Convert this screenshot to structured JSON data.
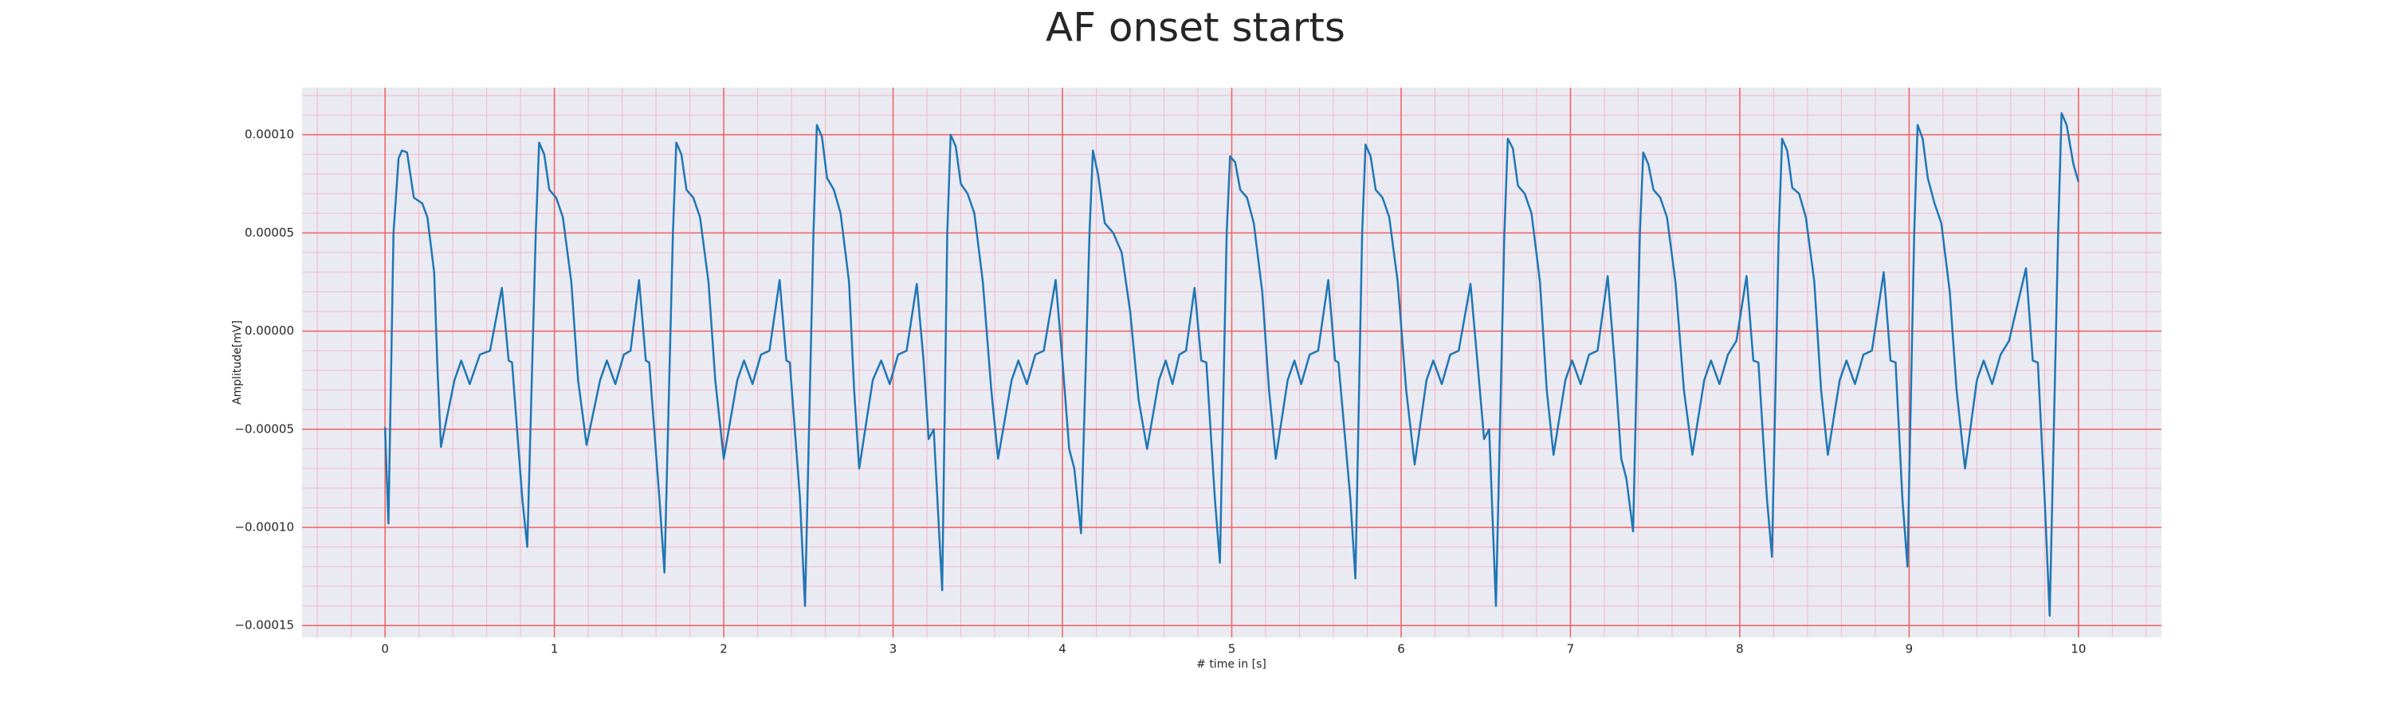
{
  "chart_data": {
    "type": "line",
    "title": "AF onset starts",
    "xlabel": "# time in [s]",
    "ylabel": "Amplitude[mV]",
    "xlim": [
      -0.49,
      10.49
    ],
    "ylim": [
      -0.000156,
      0.000124
    ],
    "xticks": [
      0,
      1,
      2,
      3,
      4,
      5,
      6,
      7,
      8,
      9,
      10
    ],
    "yticks": [
      {
        "value": -0.00015,
        "label": "−0.00015"
      },
      {
        "value": -0.0001,
        "label": "−0.00010"
      },
      {
        "value": -5e-05,
        "label": "−0.00005"
      },
      {
        "value": 0,
        "label": "0.00000"
      },
      {
        "value": 5e-05,
        "label": "0.00005"
      },
      {
        "value": 0.0001,
        "label": "0.00010"
      }
    ],
    "grid": true,
    "series": [
      {
        "color": "#1f77b4",
        "x": [
          0,
          0.02,
          0.05,
          0.08,
          0.1,
          0.13,
          0.17,
          0.22,
          0.25,
          0.29,
          0.31,
          0.33,
          0.41,
          0.45,
          0.5,
          0.56,
          0.62,
          0.69,
          0.73,
          0.75,
          0.81,
          0.84,
          0.89,
          0.91,
          0.94,
          0.97,
          1.01,
          1.05,
          1.1,
          1.14,
          1.19,
          1.27,
          1.31,
          1.36,
          1.41,
          1.45,
          1.5,
          1.54,
          1.56,
          1.62,
          1.65,
          1.7,
          1.72,
          1.75,
          1.78,
          1.82,
          1.86,
          1.91,
          1.95,
          2.0,
          2.08,
          2.12,
          2.17,
          2.22,
          2.27,
          2.33,
          2.37,
          2.39,
          2.45,
          2.48,
          2.53,
          2.55,
          2.58,
          2.61,
          2.65,
          2.69,
          2.74,
          2.77,
          2.8,
          2.88,
          2.93,
          2.98,
          3.03,
          3.08,
          3.14,
          3.18,
          3.21,
          3.24,
          3.29,
          3.32,
          3.34,
          3.37,
          3.4,
          3.44,
          3.48,
          3.53,
          3.58,
          3.62,
          3.7,
          3.74,
          3.79,
          3.84,
          3.89,
          3.96,
          4.0,
          4.04,
          4.07,
          4.11,
          4.16,
          4.18,
          4.21,
          4.25,
          4.3,
          4.35,
          4.4,
          4.45,
          4.5,
          4.57,
          4.61,
          4.65,
          4.69,
          4.73,
          4.78,
          4.82,
          4.85,
          4.9,
          4.93,
          4.97,
          4.99,
          5.02,
          5.05,
          5.09,
          5.13,
          5.18,
          5.22,
          5.26,
          5.33,
          5.37,
          5.41,
          5.46,
          5.51,
          5.57,
          5.61,
          5.63,
          5.7,
          5.73,
          5.77,
          5.79,
          5.82,
          5.85,
          5.89,
          5.93,
          5.98,
          6.03,
          6.08,
          6.15,
          6.19,
          6.24,
          6.29,
          6.34,
          6.41,
          6.45,
          6.49,
          6.52,
          6.56,
          6.61,
          6.63,
          6.66,
          6.69,
          6.73,
          6.77,
          6.82,
          6.86,
          6.9,
          6.97,
          7.01,
          7.06,
          7.11,
          7.16,
          7.22,
          7.26,
          7.3,
          7.33,
          7.37,
          7.41,
          7.43,
          7.46,
          7.49,
          7.53,
          7.57,
          7.62,
          7.67,
          7.72,
          7.79,
          7.83,
          7.88,
          7.93,
          7.98,
          8.04,
          8.08,
          8.11,
          8.16,
          8.19,
          8.23,
          8.25,
          8.28,
          8.31,
          8.35,
          8.39,
          8.44,
          8.48,
          8.52,
          8.59,
          8.63,
          8.68,
          8.73,
          8.78,
          8.85,
          8.89,
          8.92,
          8.96,
          8.99,
          9.03,
          9.05,
          9.08,
          9.11,
          9.15,
          9.19,
          9.24,
          9.28,
          9.33,
          9.4,
          9.44,
          9.49,
          9.54,
          9.59,
          9.69,
          9.73,
          9.76,
          9.8,
          9.83,
          9.88,
          9.9,
          9.93,
          9.97,
          10
        ],
        "values": [
          -4.9e-05,
          -9.8e-05,
          5e-05,
          8.8e-05,
          9.2e-05,
          9.1e-05,
          6.8e-05,
          6.5e-05,
          5.8e-05,
          3e-05,
          -2e-05,
          -5.9e-05,
          -2.5e-05,
          -1.5e-05,
          -2.7e-05,
          -1.2e-05,
          -1e-05,
          2.2e-05,
          -1.5e-05,
          -1.6e-05,
          -8.5e-05,
          -0.00011,
          5e-05,
          9.6e-05,
          9e-05,
          7.2e-05,
          6.8e-05,
          5.8e-05,
          2.5e-05,
          -2.5e-05,
          -5.8e-05,
          -2.5e-05,
          -1.5e-05,
          -2.7e-05,
          -1.2e-05,
          -1e-05,
          2.6e-05,
          -1.5e-05,
          -1.6e-05,
          -8.5e-05,
          -0.000123,
          5e-05,
          9.6e-05,
          9e-05,
          7.2e-05,
          6.8e-05,
          5.8e-05,
          2.5e-05,
          -2.5e-05,
          -6.5e-05,
          -2.5e-05,
          -1.5e-05,
          -2.7e-05,
          -1.2e-05,
          -1e-05,
          2.6e-05,
          -1.5e-05,
          -1.6e-05,
          -8.5e-05,
          -0.00014,
          5e-05,
          0.000105,
          9.9e-05,
          7.8e-05,
          7.2e-05,
          6e-05,
          2.5e-05,
          -3e-05,
          -7e-05,
          -2.5e-05,
          -1.5e-05,
          -2.7e-05,
          -1.2e-05,
          -1e-05,
          2.4e-05,
          -1.5e-05,
          -5.5e-05,
          -5e-05,
          -0.000132,
          5e-05,
          0.0001,
          9.4e-05,
          7.5e-05,
          7e-05,
          6e-05,
          2.5e-05,
          -3e-05,
          -6.5e-05,
          -2.5e-05,
          -1.5e-05,
          -2.7e-05,
          -1.2e-05,
          -1e-05,
          2.6e-05,
          -1.5e-05,
          -6e-05,
          -7e-05,
          -0.000103,
          5e-05,
          9.2e-05,
          8e-05,
          5.5e-05,
          5e-05,
          4e-05,
          1e-05,
          -3.5e-05,
          -6e-05,
          -2.5e-05,
          -1.5e-05,
          -2.7e-05,
          -1.2e-05,
          -1e-05,
          2.2e-05,
          -1.5e-05,
          -1.6e-05,
          -8.5e-05,
          -0.000118,
          5e-05,
          8.9e-05,
          8.6e-05,
          7.2e-05,
          6.8e-05,
          5.5e-05,
          2e-05,
          -3e-05,
          -6.5e-05,
          -2.5e-05,
          -1.5e-05,
          -2.7e-05,
          -1.2e-05,
          -1e-05,
          2.6e-05,
          -1.5e-05,
          -1.6e-05,
          -8.5e-05,
          -0.000126,
          5e-05,
          9.5e-05,
          8.9e-05,
          7.2e-05,
          6.8e-05,
          5.8e-05,
          2.5e-05,
          -3e-05,
          -6.8e-05,
          -2.5e-05,
          -1.5e-05,
          -2.7e-05,
          -1.2e-05,
          -1e-05,
          2.4e-05,
          -1.5e-05,
          -5.5e-05,
          -5e-05,
          -0.00014,
          5e-05,
          9.8e-05,
          9.3e-05,
          7.4e-05,
          7e-05,
          6e-05,
          2.5e-05,
          -3e-05,
          -6.3e-05,
          -2.5e-05,
          -1.5e-05,
          -2.7e-05,
          -1.2e-05,
          -1e-05,
          2.8e-05,
          -1.5e-05,
          -6.5e-05,
          -7.5e-05,
          -0.000102,
          5e-05,
          9.1e-05,
          8.5e-05,
          7.2e-05,
          6.8e-05,
          5.8e-05,
          2.5e-05,
          -3e-05,
          -6.3e-05,
          -2.5e-05,
          -1.5e-05,
          -2.7e-05,
          -1.2e-05,
          -5e-06,
          2.8e-05,
          -1.5e-05,
          -1.6e-05,
          -8.5e-05,
          -0.000115,
          5e-05,
          9.8e-05,
          9.2e-05,
          7.3e-05,
          7e-05,
          5.8e-05,
          2.5e-05,
          -3e-05,
          -6.3e-05,
          -2.5e-05,
          -1.5e-05,
          -2.7e-05,
          -1.2e-05,
          -1e-05,
          3e-05,
          -1.5e-05,
          -1.6e-05,
          -8.5e-05,
          -0.00012,
          5e-05,
          0.000105,
          9.8e-05,
          7.8e-05,
          6.5e-05,
          5.5e-05,
          2e-05,
          -3e-05,
          -7e-05,
          -2.5e-05,
          -1.5e-05,
          -2.7e-05,
          -1.2e-05,
          -5e-06,
          3.2e-05,
          -1.5e-05,
          -1.6e-05,
          -8.5e-05,
          -0.000145,
          5e-05,
          0.000111,
          0.000105,
          8.5e-05,
          7.6e-05
        ]
      }
    ]
  }
}
